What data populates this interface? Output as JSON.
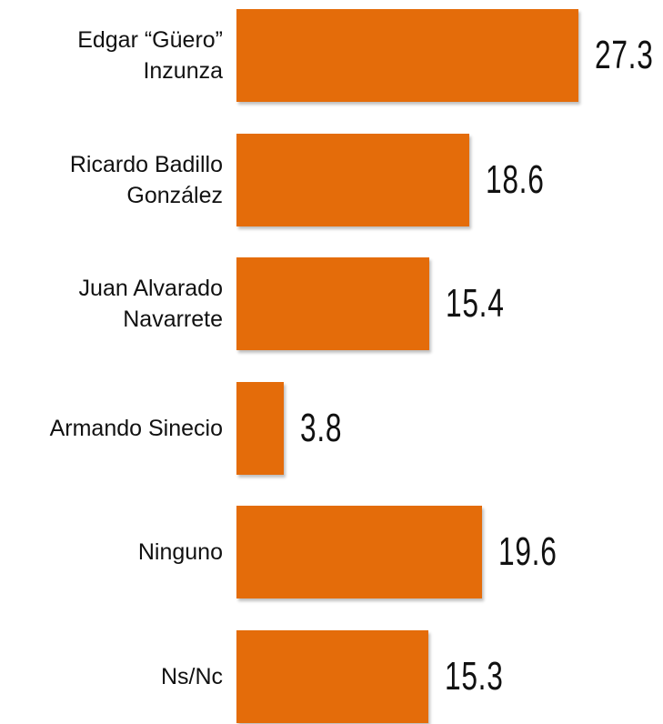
{
  "chart_data": {
    "type": "bar",
    "orientation": "horizontal",
    "categories": [
      "Edgar “Güero” Inzunza",
      "Ricardo Badillo González",
      "Juan Alvarado Navarrete",
      "Armando Sinecio",
      "Ninguno",
      "Ns/Nc"
    ],
    "values": [
      27.3,
      18.6,
      15.4,
      3.8,
      19.6,
      15.3
    ],
    "color": "#e46c0a"
  }
}
